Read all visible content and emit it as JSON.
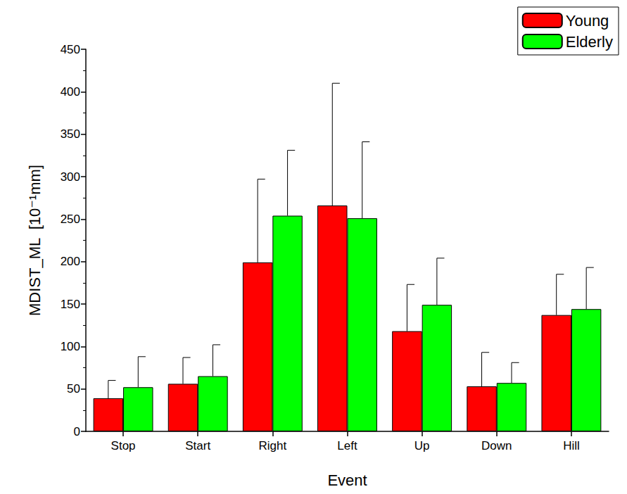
{
  "chart_data": {
    "type": "bar",
    "x_label": "Event",
    "y_label": "MDIST_ML  [10⁻¹mm]",
    "categories": [
      "Stop",
      "Start",
      "Right",
      "Left",
      "Up",
      "Down",
      "Hill"
    ],
    "series": [
      {
        "name": "Young",
        "color": "#ff0000",
        "values": [
          39,
          56,
          199,
          266,
          118,
          53,
          137
        ],
        "errors": [
          21,
          31,
          98,
          144,
          55,
          40,
          48
        ]
      },
      {
        "name": "Elderly",
        "color": "#00ff00",
        "values": [
          52,
          65,
          254,
          251,
          149,
          57,
          144
        ],
        "errors": [
          36,
          37,
          77,
          90,
          55,
          24,
          49
        ]
      }
    ],
    "ylim": [
      0,
      450
    ],
    "yticks": [
      0,
      50,
      100,
      150,
      200,
      250,
      300,
      350,
      400,
      450
    ],
    "legend": "upper right",
    "grid": false
  }
}
